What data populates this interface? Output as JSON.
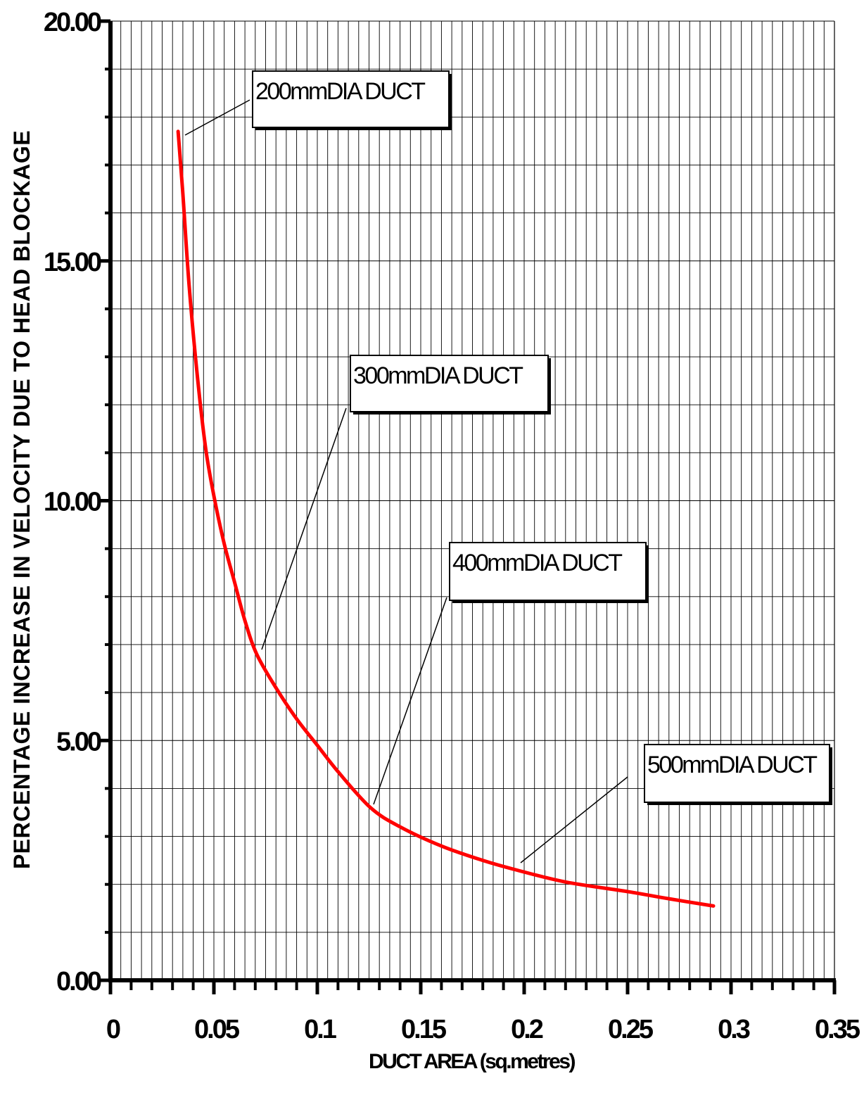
{
  "chart_data": {
    "type": "line",
    "title": "",
    "xlabel": "DUCT AREA (sq.metres)",
    "ylabel": "PERCENTAGE INCREASE IN VELOCITY DUE TO HEAD BLOCKAGE",
    "xlim": [
      0,
      0.35
    ],
    "ylim": [
      0,
      20
    ],
    "x_ticks": [
      0,
      0.05,
      0.1,
      0.15,
      0.2,
      0.25,
      0.3,
      0.35
    ],
    "x_tick_labels": [
      "0",
      "0.05",
      "0.1",
      "0.15",
      "0.2",
      "0.25",
      "0.3",
      "0.35"
    ],
    "y_ticks": [
      0,
      5,
      10,
      15,
      20
    ],
    "y_tick_labels": [
      "0.00",
      "5.00",
      "10.00",
      "15.00",
      "20.00"
    ],
    "x_minor_step": 0.005,
    "y_minor_step": 1,
    "grid": true,
    "series": [
      {
        "color": "#ff0000",
        "x": [
          0.0327,
          0.035,
          0.038,
          0.042,
          0.046,
          0.05,
          0.055,
          0.06,
          0.065,
          0.0707,
          0.08,
          0.09,
          0.1,
          0.11,
          0.1257,
          0.14,
          0.16,
          0.18,
          0.1963,
          0.22,
          0.25,
          0.27,
          0.2915
        ],
        "y": [
          17.7,
          16.4,
          14.5,
          12.6,
          11.1,
          10.1,
          9.1,
          8.3,
          7.5,
          6.8,
          6.1,
          5.45,
          4.9,
          4.35,
          3.6,
          3.2,
          2.8,
          2.5,
          2.3,
          2.05,
          1.85,
          1.7,
          1.55
        ]
      }
    ],
    "annotations": [
      {
        "label": "200mmDIA DUCT",
        "x": 0.0327,
        "y": 17.7
      },
      {
        "label": "300mmDIA DUCT",
        "x": 0.0707,
        "y": 6.8
      },
      {
        "label": "400mmDIA DUCT",
        "x": 0.1257,
        "y": 3.6
      },
      {
        "label": "500mmDIA DUCT",
        "x": 0.1963,
        "y": 2.3
      }
    ]
  }
}
